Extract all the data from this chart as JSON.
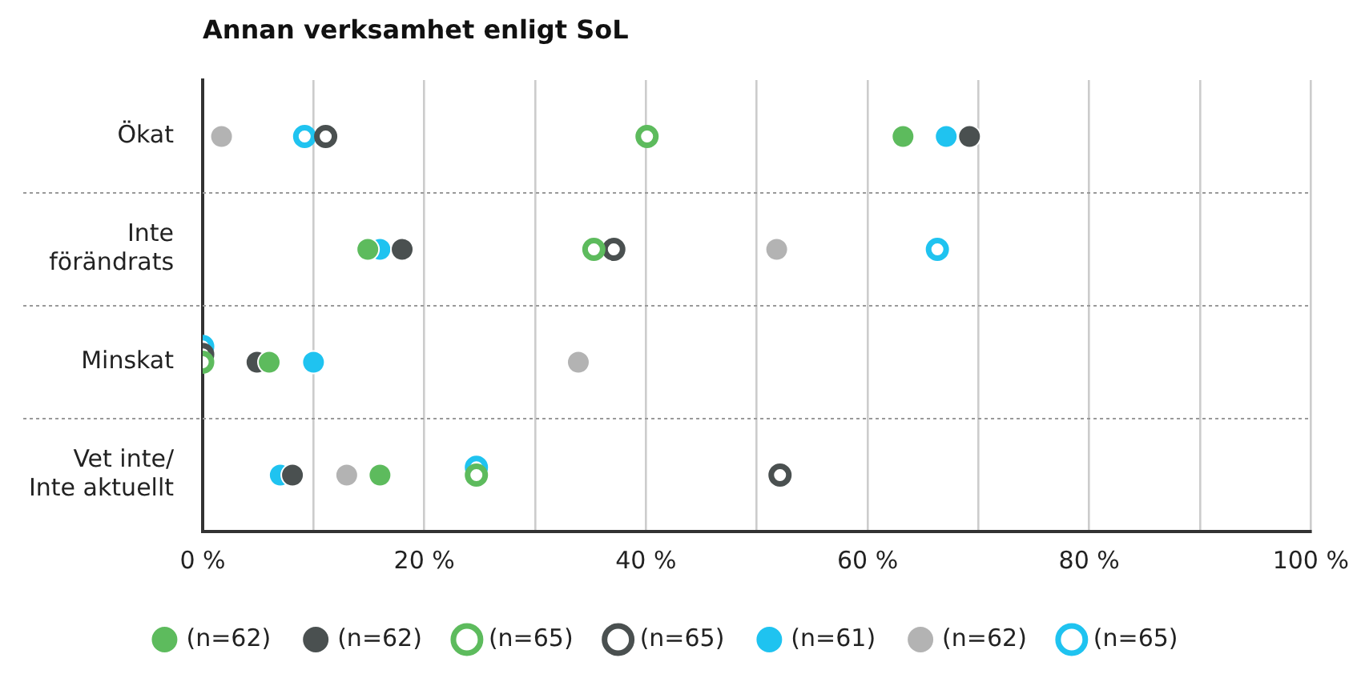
{
  "chart_data": {
    "type": "scatter",
    "title": "Annan verksamhet enligt SoL",
    "categories": [
      "Ökat",
      "Inte\nförändrats",
      "Minskat",
      "Vet inte/\nInte aktuellt"
    ],
    "orientation": "horizontal",
    "xlim": [
      0,
      100
    ],
    "xticks": [
      {
        "value": 0,
        "label": "0 %"
      },
      {
        "value": 10,
        "label": null
      },
      {
        "value": 20,
        "label": "20 %"
      },
      {
        "value": 30,
        "label": null
      },
      {
        "value": 40,
        "label": "40 %"
      },
      {
        "value": 50,
        "label": null
      },
      {
        "value": 60,
        "label": "60 %"
      },
      {
        "value": 70,
        "label": null
      },
      {
        "value": 80,
        "label": "80 %"
      },
      {
        "value": 90,
        "label": null
      },
      {
        "value": 100,
        "label": "100 %"
      }
    ],
    "grid": true,
    "legend": "bottom",
    "marker": "circle",
    "series": [
      {
        "name": "(n=62)",
        "color": "#5dbb5d",
        "values": [
          63.2,
          14.9,
          6.0,
          16.0
        ]
      },
      {
        "name": "(n=62)",
        "color": "#4a5050",
        "values": [
          69.2,
          18.0,
          4.9,
          8.1
        ]
      },
      {
        "name": "(n=65)",
        "color": "#5dbb5d",
        "marker": "circle-open",
        "values": [
          40.1,
          35.3,
          0,
          24.7
        ]
      },
      {
        "name": "(n=65)",
        "color": "#4a5050",
        "marker": "circle-open",
        "values": [
          11.1,
          37.1,
          0,
          52.1
        ]
      },
      {
        "name": "(n=61)",
        "color": "#1fc3f0",
        "values": [
          67.1,
          16.0,
          10.0,
          7.0
        ]
      },
      {
        "name": "(n=62)",
        "color": "#b3b3b3",
        "values": [
          1.7,
          51.8,
          33.9,
          13.0
        ]
      },
      {
        "name": "(n=65)",
        "color": "#1fc3f0",
        "marker": "circle-open",
        "values": [
          9.2,
          66.3,
          0,
          24.7
        ]
      }
    ]
  }
}
